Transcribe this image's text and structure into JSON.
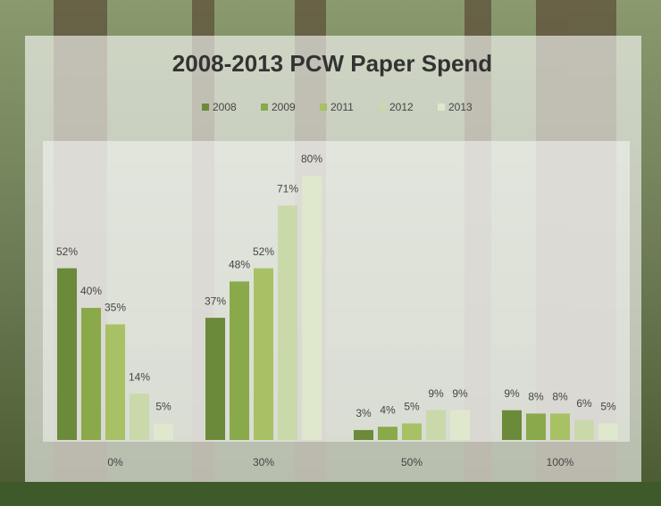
{
  "chart_data": {
    "type": "bar",
    "title": "2008-2013 PCW Paper Spend",
    "categories": [
      "0%",
      "30%",
      "50%",
      "100%"
    ],
    "series": [
      {
        "name": "2008",
        "color": "#6b8a3a",
        "values": [
          52,
          37,
          3,
          9
        ],
        "value_labels": [
          "52%",
          "37%",
          "3%",
          "9%"
        ]
      },
      {
        "name": "2009",
        "color": "#89a94b",
        "values": [
          40,
          48,
          4,
          8
        ],
        "value_labels": [
          "40%",
          "48%",
          "4%",
          "8%"
        ]
      },
      {
        "name": "2011",
        "color": "#a7c164",
        "values": [
          35,
          52,
          5,
          8
        ],
        "value_labels": [
          "35%",
          "52%",
          "5%",
          "8%"
        ]
      },
      {
        "name": "2012",
        "color": "#c9d9aa",
        "values": [
          14,
          71,
          9,
          6
        ],
        "value_labels": [
          "14%",
          "71%",
          "9%",
          "6%"
        ]
      },
      {
        "name": "2013",
        "color": "#dfe8cc",
        "values": [
          5,
          80,
          9,
          5
        ],
        "value_labels": [
          "5%",
          "80%",
          "9%",
          "5%"
        ]
      }
    ],
    "legend": "top"
  }
}
